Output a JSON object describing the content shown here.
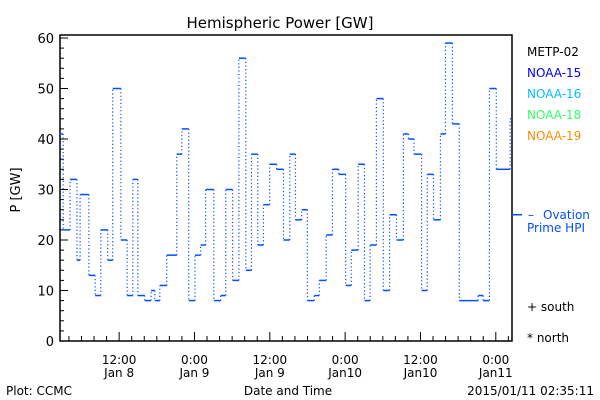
{
  "chart_data": {
    "type": "line",
    "style": "step",
    "title": "Hemispheric Power [GW]",
    "xlabel": "Date and Time",
    "ylabel": "P [GW]",
    "ylim": [
      0,
      60
    ],
    "yticks": [
      0,
      10,
      20,
      30,
      40,
      50,
      60
    ],
    "xlim_hours": [
      0,
      72
    ],
    "x_unit": "hours since 2015/01/08 02:35",
    "xticks": [
      {
        "hour": 9.42,
        "time": "12:00",
        "date": "Jan 8"
      },
      {
        "hour": 21.42,
        "time": "0:00",
        "date": "Jan 9"
      },
      {
        "hour": 33.42,
        "time": "12:00",
        "date": "Jan 9"
      },
      {
        "hour": 45.42,
        "time": "0:00",
        "date": "Jan10"
      },
      {
        "hour": 57.42,
        "time": "12:00",
        "date": "Jan10"
      },
      {
        "hour": 69.42,
        "time": "0:00",
        "date": "Jan11"
      }
    ],
    "legend": [
      {
        "label": "METP-02",
        "color": "#000000"
      },
      {
        "label": "NOAA-15",
        "color": "#0000ff"
      },
      {
        "label": "NOAA-16",
        "color": "#00bfff"
      },
      {
        "label": "NOAA-18",
        "color": "#33ff66"
      },
      {
        "label": "NOAA-19",
        "color": "#ff8c00"
      }
    ],
    "ovation": {
      "label_line1": "Ovation",
      "label_line2": "Prime HPI",
      "value": 25,
      "color": "#0050ff"
    },
    "markers": {
      "south": "+ south",
      "north": "* north"
    },
    "series": [
      {
        "name": "NOAA-15",
        "color": "#0050ff",
        "t": [
          0,
          0.5,
          1.6,
          2.7,
          3.2,
          4.6,
          5.6,
          6.5,
          7.6,
          8.4,
          9.7,
          10.7,
          11.6,
          12.4,
          13.5,
          14.5,
          15.1,
          15.9,
          17.0,
          18.6,
          19.4,
          20.5,
          21.5,
          22.4,
          23.2,
          24.5,
          25.6,
          26.4,
          27.5,
          28.5,
          29.6,
          30.5,
          31.5,
          32.4,
          33.4,
          34.5,
          35.6,
          36.6,
          37.5,
          38.5,
          39.4,
          40.5,
          41.3,
          42.4,
          43.4,
          44.4,
          45.5,
          46.4,
          47.5,
          48.5,
          49.4,
          50.4,
          51.5,
          52.5,
          53.6,
          54.7,
          55.5,
          56.4,
          57.6,
          58.5,
          59.5,
          60.6,
          61.4,
          62.5,
          63.6,
          66.6,
          67.4,
          68.4,
          69.5,
          71.7
        ],
        "values": [
          41,
          22,
          32,
          16,
          29,
          13,
          9,
          22,
          16,
          50,
          20,
          9,
          32,
          9,
          8,
          10,
          8,
          11,
          17,
          37,
          42,
          8,
          17,
          19,
          30,
          8,
          9,
          30,
          12,
          56,
          14,
          37,
          19,
          27,
          35,
          34,
          20,
          37,
          24,
          26,
          8,
          9,
          12,
          21,
          34,
          33,
          11,
          18,
          35,
          8,
          19,
          48,
          10,
          25,
          20,
          41,
          40,
          37,
          10,
          33,
          24,
          41,
          59,
          43,
          8,
          9,
          8,
          50,
          34,
          44
        ]
      }
    ]
  },
  "footer": {
    "left": "Plot: CCMC",
    "right": "2015/01/11 02:35:11"
  }
}
